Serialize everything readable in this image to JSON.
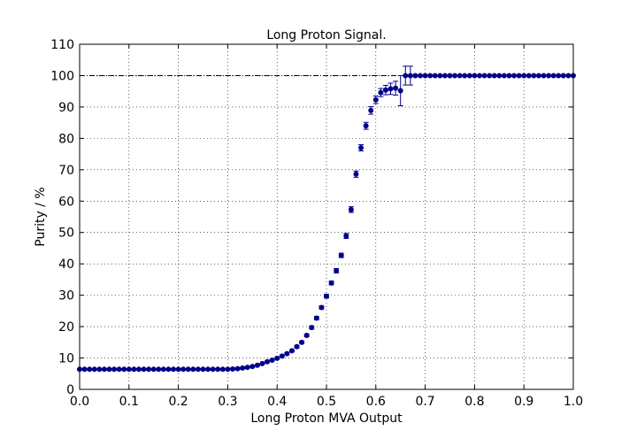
{
  "chart_data": {
    "type": "scatter",
    "title": "Long Proton Signal.",
    "xlabel": "Long Proton MVA Output",
    "ylabel": "Purity / %",
    "xlim": [
      0.0,
      1.0
    ],
    "ylim": [
      0,
      110
    ],
    "xticks": [
      "0.0",
      "0.1",
      "0.2",
      "0.3",
      "0.4",
      "0.5",
      "0.6",
      "0.7",
      "0.8",
      "0.9",
      "1.0"
    ],
    "yticks": [
      "0",
      "10",
      "20",
      "30",
      "40",
      "50",
      "60",
      "70",
      "80",
      "90",
      "100",
      "110"
    ],
    "grid": true,
    "reference_line": 100,
    "marker_color": "#00008b",
    "series": [
      {
        "x": [
          0.0,
          0.01,
          0.02,
          0.03,
          0.04,
          0.05,
          0.06,
          0.07,
          0.08,
          0.09,
          0.1,
          0.11,
          0.12,
          0.13,
          0.14,
          0.15,
          0.16,
          0.17,
          0.18,
          0.19,
          0.2,
          0.21,
          0.22,
          0.23,
          0.24,
          0.25,
          0.26,
          0.27,
          0.28,
          0.29,
          0.3,
          0.31,
          0.32,
          0.33,
          0.34,
          0.35,
          0.36,
          0.37,
          0.38,
          0.39,
          0.4,
          0.41,
          0.42,
          0.43,
          0.44,
          0.45,
          0.46,
          0.47,
          0.48,
          0.49,
          0.5,
          0.51,
          0.52,
          0.53,
          0.54,
          0.55,
          0.56,
          0.57,
          0.58,
          0.59,
          0.6,
          0.61,
          0.62,
          0.63,
          0.64,
          0.65,
          0.66,
          0.67,
          0.68,
          0.69,
          0.7,
          0.71,
          0.72,
          0.73,
          0.74,
          0.75,
          0.76,
          0.77,
          0.78,
          0.79,
          0.8,
          0.81,
          0.82,
          0.83,
          0.84,
          0.85,
          0.86,
          0.87,
          0.88,
          0.89,
          0.9,
          0.91,
          0.92,
          0.93,
          0.94,
          0.95,
          0.96,
          0.97,
          0.98,
          0.99,
          1.0
        ],
        "y": [
          6.4,
          6.4,
          6.4,
          6.4,
          6.4,
          6.4,
          6.4,
          6.4,
          6.4,
          6.4,
          6.4,
          6.4,
          6.4,
          6.4,
          6.4,
          6.4,
          6.4,
          6.4,
          6.4,
          6.4,
          6.4,
          6.4,
          6.4,
          6.4,
          6.4,
          6.4,
          6.4,
          6.4,
          6.4,
          6.4,
          6.4,
          6.5,
          6.6,
          6.8,
          7.0,
          7.3,
          7.7,
          8.2,
          8.8,
          9.3,
          9.9,
          10.6,
          11.4,
          12.3,
          13.6,
          15.0,
          17.2,
          19.7,
          22.7,
          26.1,
          29.7,
          33.9,
          37.8,
          42.7,
          48.9,
          57.3,
          68.6,
          77.0,
          84.0,
          88.9,
          92.3,
          94.6,
          95.4,
          95.8,
          96.0,
          95.2,
          100.0,
          100.0,
          100.0,
          100.0,
          100.0,
          100.0,
          100.0,
          100.0,
          100.0,
          100.0,
          100.0,
          100.0,
          100.0,
          100.0,
          100.0,
          100.0,
          100.0,
          100.0,
          100.0,
          100.0,
          100.0,
          100.0,
          100.0,
          100.0,
          100.0,
          100.0,
          100.0,
          100.0,
          100.0,
          100.0,
          100.0,
          100.0,
          100.0,
          100.0,
          100.0
        ],
        "yerr": [
          0.2,
          0.2,
          0.2,
          0.2,
          0.2,
          0.2,
          0.2,
          0.2,
          0.2,
          0.2,
          0.2,
          0.2,
          0.2,
          0.2,
          0.2,
          0.2,
          0.2,
          0.2,
          0.2,
          0.2,
          0.2,
          0.2,
          0.2,
          0.2,
          0.2,
          0.2,
          0.2,
          0.2,
          0.2,
          0.2,
          0.2,
          0.2,
          0.2,
          0.2,
          0.2,
          0.2,
          0.2,
          0.2,
          0.2,
          0.3,
          0.3,
          0.3,
          0.3,
          0.3,
          0.4,
          0.4,
          0.4,
          0.5,
          0.5,
          0.5,
          0.6,
          0.6,
          0.7,
          0.7,
          0.8,
          0.9,
          1.0,
          1.0,
          1.1,
          1.2,
          1.2,
          1.3,
          1.5,
          1.8,
          2.2,
          4.8,
          3.0,
          3.0,
          0.0,
          0.0,
          0.0,
          0.0,
          0.0,
          0.0,
          0.0,
          0.0,
          0.0,
          0.0,
          0.0,
          0.0,
          0.0,
          0.0,
          0.0,
          0.0,
          0.0,
          0.0,
          0.0,
          0.0,
          0.0,
          0.0,
          0.0,
          0.0,
          0.0,
          0.0,
          0.0,
          0.0,
          0.0,
          0.0,
          0.0,
          0.0,
          0.0
        ]
      }
    ]
  }
}
